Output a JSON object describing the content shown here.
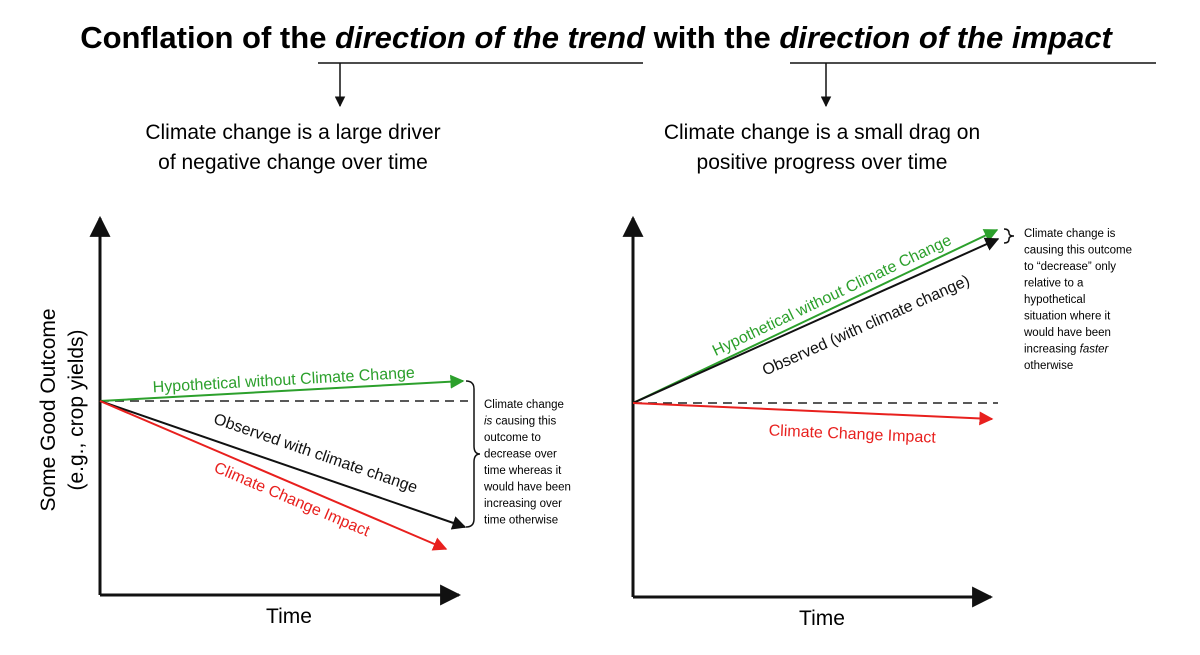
{
  "title": {
    "prefix": "Conflation of the ",
    "italic1": "direction of the trend",
    "middle": " with the ",
    "italic2": "direction of the impact"
  },
  "left": {
    "heading_line1": "Climate change is a large driver",
    "heading_line2": "of negative change over time",
    "y_axis_line1": "Some Good Outcome",
    "y_axis_line2": "(e.g., crop yields)",
    "x_axis": "Time",
    "hypothetical_label": "Hypothetical without Climate Change",
    "observed_label": "Observed with climate change",
    "impact_label": "Climate Change Impact",
    "note_lines": [
      "Climate change",
      "is causing this",
      "outcome to",
      "decrease over",
      "time whereas it",
      "would have been",
      "increasing over",
      "time otherwise"
    ]
  },
  "right": {
    "heading_line1": "Climate change is a small drag on",
    "heading_line2": "positive progress over time",
    "x_axis": "Time",
    "hypothetical_label": "Hypothetical without Climate Change",
    "observed_label": "Observed (with climate change)",
    "impact_label": "Climate Change Impact",
    "note_lines": [
      "Climate change is",
      "causing this outcome",
      "to “decrease” only",
      "relative to a",
      "hypothetical",
      "situation where it",
      "would have been",
      "increasing faster",
      "otherwise"
    ]
  },
  "colors": {
    "green": "#2ca02c",
    "red": "#e8201e",
    "black": "#111111",
    "dash": "#222222"
  }
}
